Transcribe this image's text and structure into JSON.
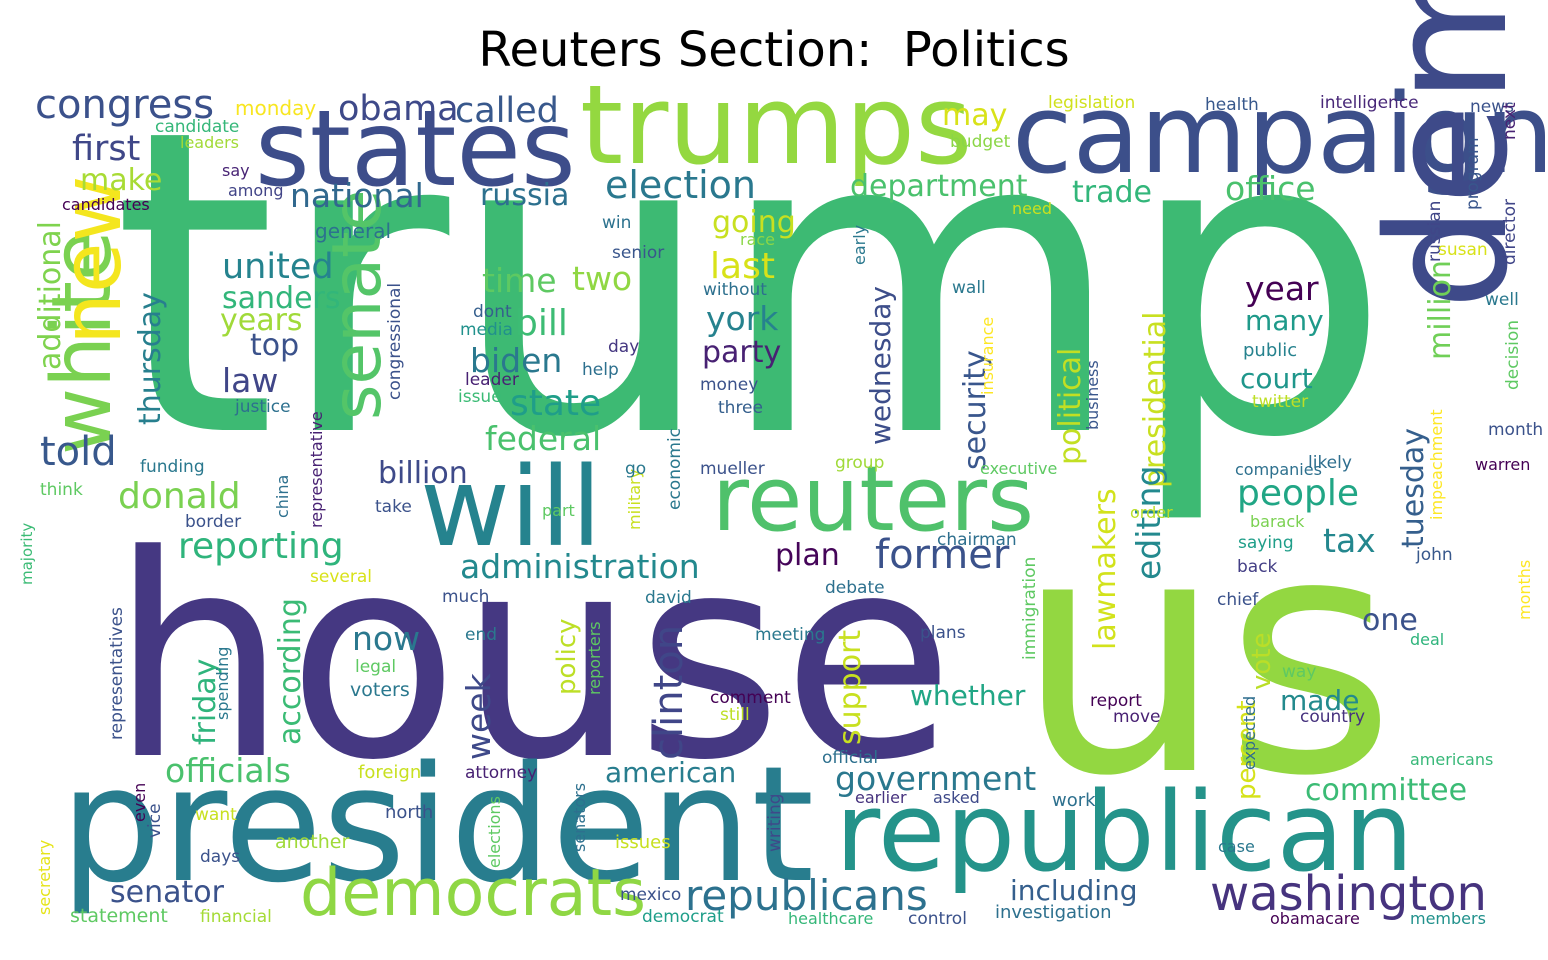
{
  "title": "Reuters Section:  Politics",
  "palette": [
    "#440154",
    "#443983",
    "#31688e",
    "#21918c",
    "#35b779",
    "#90d743",
    "#fde725"
  ],
  "words": [
    {
      "text": "trump",
      "c": "#3dba73"
    },
    {
      "text": "house",
      "c": "#453882"
    },
    {
      "text": "us",
      "c": "#93d741"
    },
    {
      "text": "president",
      "c": "#287d8e"
    },
    {
      "text": "republican",
      "c": "#24938a"
    },
    {
      "text": "campaign",
      "c": "#3c4f8a"
    },
    {
      "text": "trumps",
      "c": "#94d840"
    },
    {
      "text": "states",
      "c": "#3d4d8a"
    },
    {
      "text": "democratic",
      "c": "#3e4a89"
    },
    {
      "text": "will",
      "c": "#25838e"
    },
    {
      "text": "reuters",
      "c": "#4fc16b"
    },
    {
      "text": "white",
      "c": "#7ad151"
    },
    {
      "text": "new",
      "c": "#f4e61e"
    },
    {
      "text": "senate",
      "c": "#54c568"
    },
    {
      "text": "democrats",
      "c": "#8fd744"
    },
    {
      "text": "republicans",
      "c": "#2c718e"
    },
    {
      "text": "washington",
      "c": "#46337e"
    },
    {
      "text": "congress",
      "c": "#3b518b"
    },
    {
      "text": "obama",
      "c": "#3e4989"
    },
    {
      "text": "called",
      "c": "#38588c"
    },
    {
      "text": "first",
      "c": "#3f4788"
    },
    {
      "text": "make",
      "c": "#a8db34"
    },
    {
      "text": "national",
      "c": "#31688e"
    },
    {
      "text": "russia",
      "c": "#2d708e"
    },
    {
      "text": "election",
      "c": "#2a788e"
    },
    {
      "text": "department",
      "c": "#4ac16d"
    },
    {
      "text": "trade",
      "c": "#32b67a"
    },
    {
      "text": "office",
      "c": "#4ac16d"
    },
    {
      "text": "may",
      "c": "#d8e219"
    },
    {
      "text": "monday",
      "c": "#f8e621"
    },
    {
      "text": "candidate",
      "c": "#35b779"
    },
    {
      "text": "leaders",
      "c": "#a2da37"
    },
    {
      "text": "say",
      "c": "#482475"
    },
    {
      "text": "among",
      "c": "#414487"
    },
    {
      "text": "candidates",
      "c": "#440154"
    },
    {
      "text": "budget",
      "c": "#8bd646"
    },
    {
      "text": "legislation",
      "c": "#d0e11c"
    },
    {
      "text": "health",
      "c": "#38588c"
    },
    {
      "text": "intelligence",
      "c": "#482878"
    },
    {
      "text": "news",
      "c": "#3b528b"
    },
    {
      "text": "united",
      "c": "#25838e"
    },
    {
      "text": "sanders",
      "c": "#32b67a"
    },
    {
      "text": "years",
      "c": "#a0da39"
    },
    {
      "text": "top",
      "c": "#3b528b"
    },
    {
      "text": "law",
      "c": "#404688"
    },
    {
      "text": "told",
      "c": "#38588c"
    },
    {
      "text": "donald",
      "c": "#7ad151"
    },
    {
      "text": "reporting",
      "c": "#2fb47c"
    },
    {
      "text": "additional",
      "c": "#7fd34e"
    },
    {
      "text": "thursday",
      "c": "#277f8e"
    },
    {
      "text": "general",
      "c": "#2c728e"
    },
    {
      "text": "win",
      "c": "#2c728e"
    },
    {
      "text": "senior",
      "c": "#39568c"
    },
    {
      "text": "race",
      "c": "#8bd646"
    },
    {
      "text": "going",
      "c": "#c8e020"
    },
    {
      "text": "last",
      "c": "#d8e219"
    },
    {
      "text": "time",
      "c": "#5ec962"
    },
    {
      "text": "two",
      "c": "#90d743"
    },
    {
      "text": "bill",
      "c": "#3dbc74"
    },
    {
      "text": "biden",
      "c": "#2a788e"
    },
    {
      "text": "state",
      "c": "#1f9e89"
    },
    {
      "text": "federal",
      "c": "#4ac16d"
    },
    {
      "text": "billion",
      "c": "#3e4a89"
    },
    {
      "text": "administration",
      "c": "#23898e"
    },
    {
      "text": "plan",
      "c": "#450559"
    },
    {
      "text": "former",
      "c": "#3b528b"
    },
    {
      "text": "york",
      "c": "#26828e"
    },
    {
      "text": "party",
      "c": "#482173"
    },
    {
      "text": "without",
      "c": "#2d708e"
    },
    {
      "text": "dont",
      "c": "#355f8d"
    },
    {
      "text": "media",
      "c": "#21918c"
    },
    {
      "text": "day",
      "c": "#453781"
    },
    {
      "text": "help",
      "c": "#2d708e"
    },
    {
      "text": "leader",
      "c": "#482173"
    },
    {
      "text": "issue",
      "c": "#3bbb75"
    },
    {
      "text": "money",
      "c": "#3b528b"
    },
    {
      "text": "three",
      "c": "#355f8d"
    },
    {
      "text": "justice",
      "c": "#2d708e"
    },
    {
      "text": "wall",
      "c": "#2a788e"
    },
    {
      "text": "chairman",
      "c": "#2e6f8e"
    },
    {
      "text": "security",
      "c": "#39568c"
    },
    {
      "text": "political",
      "c": "#c2df23"
    },
    {
      "text": "presidential",
      "c": "#c8e020"
    },
    {
      "text": "wednesday",
      "c": "#3d4e8a"
    },
    {
      "text": "lawmakers",
      "c": "#d2e21b"
    },
    {
      "text": "editing",
      "c": "#23898e"
    },
    {
      "text": "year",
      "c": "#440154"
    },
    {
      "text": "many",
      "c": "#1f9a8a"
    },
    {
      "text": "public",
      "c": "#26828e"
    },
    {
      "text": "court",
      "c": "#1f968b"
    },
    {
      "text": "people",
      "c": "#21a685"
    },
    {
      "text": "tax",
      "c": "#24878e"
    },
    {
      "text": "tuesday",
      "c": "#355f8d"
    },
    {
      "text": "million",
      "c": "#70cf57"
    },
    {
      "text": "russian",
      "c": "#404688"
    },
    {
      "text": "program",
      "c": "#39568c"
    },
    {
      "text": "susan",
      "c": "#d8e219"
    },
    {
      "text": "director",
      "c": "#404688"
    },
    {
      "text": "next",
      "c": "#482374"
    },
    {
      "text": "well",
      "c": "#2a788e"
    },
    {
      "text": "decision",
      "c": "#5ec962"
    },
    {
      "text": "month",
      "c": "#3b528b"
    },
    {
      "text": "impeachment",
      "c": "#fde725"
    },
    {
      "text": "twitter",
      "c": "#bddf26"
    },
    {
      "text": "likely",
      "c": "#2e6e8e"
    },
    {
      "text": "warren",
      "c": "#440154"
    },
    {
      "text": "companies",
      "c": "#2d708e"
    },
    {
      "text": "barack",
      "c": "#7ad151"
    },
    {
      "text": "saying",
      "c": "#1f9e89"
    },
    {
      "text": "john",
      "c": "#38588c"
    },
    {
      "text": "back",
      "c": "#433e85"
    },
    {
      "text": "one",
      "c": "#3b528b"
    },
    {
      "text": "chief",
      "c": "#3b528b"
    },
    {
      "text": "made",
      "c": "#238a8d"
    },
    {
      "text": "vote",
      "c": "#bade28"
    },
    {
      "text": "percent",
      "c": "#d5e21a"
    },
    {
      "text": "expected",
      "c": "#2e6e8e"
    },
    {
      "text": "committee",
      "c": "#3bbb75"
    },
    {
      "text": "country",
      "c": "#46327e"
    },
    {
      "text": "way",
      "c": "#5ec962"
    },
    {
      "text": "deal",
      "c": "#2fb47c"
    },
    {
      "text": "months",
      "c": "#fde725"
    },
    {
      "text": "americans",
      "c": "#37b878"
    },
    {
      "text": "report",
      "c": "#440154"
    },
    {
      "text": "move",
      "c": "#482173"
    },
    {
      "text": "work",
      "c": "#2d708e"
    },
    {
      "text": "case",
      "c": "#2a788e"
    },
    {
      "text": "obamacare",
      "c": "#440154"
    },
    {
      "text": "members",
      "c": "#21918c"
    },
    {
      "text": "including",
      "c": "#355f8d"
    },
    {
      "text": "investigation",
      "c": "#2d708e"
    },
    {
      "text": "government",
      "c": "#2a788e"
    },
    {
      "text": "whether",
      "c": "#21a685"
    },
    {
      "text": "support",
      "c": "#c8e020"
    },
    {
      "text": "clinton",
      "c": "#404688"
    },
    {
      "text": "policy",
      "c": "#bddf26"
    },
    {
      "text": "american",
      "c": "#287d8e"
    },
    {
      "text": "week",
      "c": "#3e4989"
    },
    {
      "text": "now",
      "c": "#2a788e"
    },
    {
      "text": "meeting",
      "c": "#2a788e"
    },
    {
      "text": "plans",
      "c": "#3b528b"
    },
    {
      "text": "immigration",
      "c": "#5ec962"
    },
    {
      "text": "insurance",
      "c": "#fde725"
    },
    {
      "text": "business",
      "c": "#39568c"
    },
    {
      "text": "executive",
      "c": "#5ec962"
    },
    {
      "text": "order",
      "c": "#bade28"
    },
    {
      "text": "officials",
      "c": "#4ac16d"
    },
    {
      "text": "according",
      "c": "#3bbb75"
    },
    {
      "text": "friday",
      "c": "#2fb47c"
    },
    {
      "text": "senator",
      "c": "#3b528b"
    },
    {
      "text": "statement",
      "c": "#5ec962"
    },
    {
      "text": "financial",
      "c": "#a5db36"
    },
    {
      "text": "democrat",
      "c": "#1f9e89"
    },
    {
      "text": "healthcare",
      "c": "#35b779"
    },
    {
      "text": "control",
      "c": "#3b528b"
    },
    {
      "text": "mexico",
      "c": "#3b528b"
    },
    {
      "text": "issues",
      "c": "#c8e020"
    },
    {
      "text": "elections",
      "c": "#5ec962"
    },
    {
      "text": "writing",
      "c": "#3e4989"
    },
    {
      "text": "days",
      "c": "#3b528b"
    },
    {
      "text": "another",
      "c": "#a0da39"
    },
    {
      "text": "want",
      "c": "#c8e020"
    },
    {
      "text": "north",
      "c": "#3b528b"
    },
    {
      "text": "even",
      "c": "#440154"
    },
    {
      "text": "vice",
      "c": "#3b528b"
    },
    {
      "text": "secretary",
      "c": "#e5e419"
    },
    {
      "text": "senators",
      "c": "#2d708e"
    },
    {
      "text": "foreign",
      "c": "#c8e020"
    },
    {
      "text": "attorney",
      "c": "#482173"
    },
    {
      "text": "official",
      "c": "#2d708e"
    },
    {
      "text": "earlier",
      "c": "#46327e"
    },
    {
      "text": "asked",
      "c": "#3e4989"
    },
    {
      "text": "comment",
      "c": "#440154"
    },
    {
      "text": "still",
      "c": "#bddf26"
    },
    {
      "text": "voters",
      "c": "#2a788e"
    },
    {
      "text": "legal",
      "c": "#5ec962"
    },
    {
      "text": "end",
      "c": "#2a788e"
    },
    {
      "text": "spending",
      "c": "#2a788e"
    },
    {
      "text": "representatives",
      "c": "#3b528b"
    },
    {
      "text": "several",
      "c": "#d8e219"
    },
    {
      "text": "majority",
      "c": "#3bbb75"
    },
    {
      "text": "think",
      "c": "#5ec962"
    },
    {
      "text": "funding",
      "c": "#2a788e"
    },
    {
      "text": "border",
      "c": "#3b528b"
    },
    {
      "text": "representative",
      "c": "#482173"
    },
    {
      "text": "congressional",
      "c": "#3b528b"
    },
    {
      "text": "china",
      "c": "#2d708e"
    },
    {
      "text": "take",
      "c": "#3b528b"
    },
    {
      "text": "part",
      "c": "#5ec962"
    },
    {
      "text": "military",
      "c": "#c8e020"
    },
    {
      "text": "go",
      "c": "#2a788e"
    },
    {
      "text": "economic",
      "c": "#2a788e"
    },
    {
      "text": "mueller",
      "c": "#3b528b"
    },
    {
      "text": "group",
      "c": "#a0da39"
    },
    {
      "text": "reporters",
      "c": "#5ec962"
    },
    {
      "text": "david",
      "c": "#2a788e"
    },
    {
      "text": "much",
      "c": "#3b528b"
    },
    {
      "text": "debate",
      "c": "#2d708e"
    },
    {
      "text": "need",
      "c": "#c8e020"
    },
    {
      "text": "early",
      "c": "#2a788e"
    }
  ]
}
